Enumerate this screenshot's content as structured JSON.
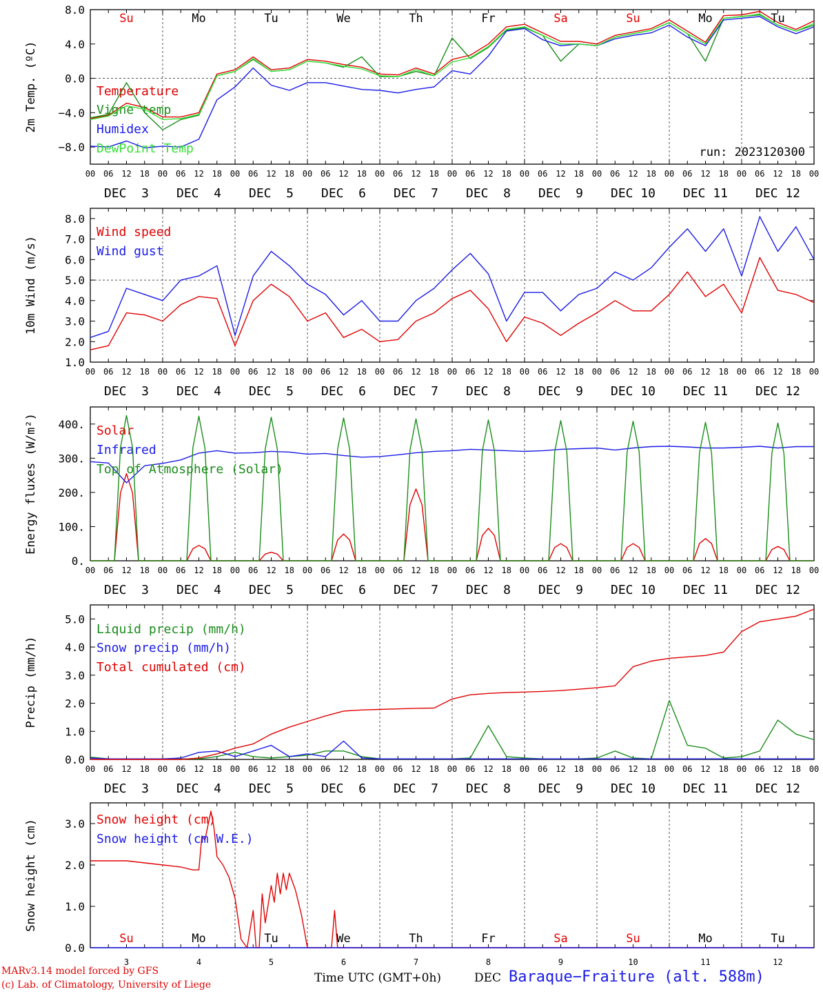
{
  "run_label": "run: 2023120300",
  "credits": {
    "line1": "MARv3.14 model forced by GFS",
    "line2": "(c) Lab. of Climatology, University of Liege"
  },
  "footer": {
    "time_label": "Time UTC (GMT+0h)",
    "month_label": "DEC",
    "station": "Baraque−Fraiture (alt. 588m)"
  },
  "x_axis": {
    "hour_ticks": [
      "00",
      "06",
      "12",
      "18"
    ],
    "date_labels": [
      "DEC  3",
      "DEC  4",
      "DEC  5",
      "DEC  6",
      "DEC  7",
      "DEC  8",
      "DEC  9",
      "DEC 10",
      "DEC 11",
      "DEC 12"
    ],
    "weekday_labels": [
      "Su",
      "Mo",
      "Tu",
      "We",
      "Th",
      "Fr",
      "Sa",
      "Su",
      "Mo",
      "Tu"
    ],
    "weekday_colors": [
      "#e00000",
      "#000000",
      "#000000",
      "#000000",
      "#000000",
      "#000000",
      "#e00000",
      "#e00000",
      "#000000",
      "#000000"
    ],
    "day_numbers": [
      "3",
      "4",
      "5",
      "6",
      "7",
      "8",
      "9",
      "10",
      "11",
      "12"
    ]
  },
  "colors": {
    "red": "#e00000",
    "green": "#1a8c1a",
    "blue": "#1a1ae6",
    "lightgreen": "#33e033",
    "grid": "#555555"
  },
  "chart_data": [
    {
      "type": "line",
      "ylabel": "2m Temp. (ºC)",
      "ylim": [
        -10,
        8
      ],
      "yticks": [
        "8.0",
        "4.0",
        "0.0",
        "−4.0",
        "−8.0"
      ],
      "ytick_values": [
        8,
        4,
        0,
        -4,
        -8
      ],
      "ref_line": 0,
      "x_hours": [
        0,
        6,
        12,
        18,
        24,
        30,
        36,
        42,
        48,
        54,
        60,
        66,
        72,
        78,
        84,
        90,
        96,
        102,
        108,
        114,
        120,
        126,
        132,
        138,
        144,
        150,
        156,
        162,
        168,
        174,
        180,
        186,
        192,
        198,
        204,
        210,
        216,
        222,
        228,
        234,
        240
      ],
      "series": [
        {
          "name": "Temperature",
          "color": "red",
          "values": [
            -4.7,
            -4.3,
            -2.9,
            -3.4,
            -4.5,
            -4.5,
            -4.0,
            0.5,
            1.0,
            2.5,
            1.0,
            1.2,
            2.2,
            2.0,
            1.6,
            1.3,
            0.5,
            0.4,
            1.2,
            0.5,
            2.2,
            2.7,
            4.0,
            6.0,
            6.3,
            5.3,
            4.3,
            4.3,
            4.0,
            5.0,
            5.4,
            5.8,
            6.8,
            5.5,
            4.2,
            7.3,
            7.4,
            7.8,
            6.5,
            5.7,
            6.7
          ]
        },
        {
          "name": "Vigne temp",
          "color": "green",
          "values": [
            -4.6,
            -4.2,
            -0.5,
            -4.0,
            -6.0,
            -4.8,
            -4.3,
            0.3,
            0.8,
            2.2,
            0.8,
            1.0,
            2.0,
            1.8,
            1.3,
            2.5,
            0.2,
            0.2,
            0.8,
            0.3,
            4.7,
            2.3,
            3.6,
            5.6,
            5.9,
            5.0,
            2.0,
            4.0,
            3.8,
            4.8,
            5.2,
            5.6,
            6.5,
            5.2,
            2.0,
            7.0,
            7.2,
            7.4,
            6.2,
            5.5,
            6.2
          ]
        },
        {
          "name": "Humidex",
          "color": "blue",
          "values": [
            -7.9,
            -8.0,
            -7.3,
            -8.1,
            -7.9,
            -8.0,
            -7.1,
            -2.5,
            -1.0,
            1.2,
            -0.8,
            -1.4,
            -0.5,
            -0.5,
            -0.9,
            -1.3,
            -1.4,
            -1.7,
            -1.3,
            -1.0,
            0.9,
            0.5,
            2.6,
            5.5,
            5.8,
            4.5,
            3.8,
            4.0,
            3.8,
            4.6,
            5.0,
            5.3,
            6.2,
            4.8,
            3.8,
            6.8,
            7.0,
            7.2,
            6.0,
            5.2,
            6.0
          ]
        },
        {
          "name": "DewPoint Temp",
          "color": "lightgreen",
          "values": [
            -4.8,
            -4.4,
            -3.2,
            -3.6,
            -4.8,
            -4.7,
            -4.2,
            0.3,
            0.8,
            2.3,
            0.8,
            1.0,
            2.0,
            1.8,
            1.4,
            1.1,
            0.3,
            0.2,
            1.0,
            0.3,
            1.9,
            2.4,
            3.7,
            5.7,
            6.0,
            5.0,
            4.0,
            4.0,
            3.8,
            4.8,
            5.2,
            5.6,
            6.5,
            5.2,
            4.0,
            7.0,
            7.2,
            7.5,
            6.2,
            5.5,
            6.4
          ]
        }
      ]
    },
    {
      "type": "line",
      "ylabel": "10m Wind (m/s)",
      "ylim": [
        1,
        8.5
      ],
      "yticks": [
        "8.0",
        "7.0",
        "6.0",
        "5.0",
        "4.0",
        "3.0",
        "2.0",
        "1.0"
      ],
      "ytick_values": [
        8,
        7,
        6,
        5,
        4,
        3,
        2,
        1
      ],
      "ref_line": 5,
      "x_hours": [
        0,
        6,
        12,
        18,
        24,
        30,
        36,
        42,
        48,
        54,
        60,
        66,
        72,
        78,
        84,
        90,
        96,
        102,
        108,
        114,
        120,
        126,
        132,
        138,
        144,
        150,
        156,
        162,
        168,
        174,
        180,
        186,
        192,
        198,
        204,
        210,
        216,
        222,
        228,
        234,
        240
      ],
      "series": [
        {
          "name": "Wind speed",
          "color": "red",
          "values": [
            1.6,
            1.8,
            3.4,
            3.3,
            3.0,
            3.8,
            4.2,
            4.1,
            1.8,
            4.0,
            4.8,
            4.2,
            3.0,
            3.4,
            2.2,
            2.6,
            2.0,
            2.1,
            3.0,
            3.4,
            4.1,
            4.5,
            3.6,
            2.0,
            3.2,
            2.9,
            2.3,
            2.9,
            3.4,
            4.0,
            3.5,
            3.5,
            4.3,
            5.4,
            4.2,
            4.8,
            3.4,
            6.1,
            4.5,
            4.3,
            3.9
          ]
        },
        {
          "name": "Wind gust",
          "color": "blue",
          "values": [
            2.2,
            2.5,
            4.6,
            4.3,
            4.0,
            5.0,
            5.2,
            5.7,
            2.3,
            5.2,
            6.4,
            5.7,
            4.8,
            4.3,
            3.3,
            4.0,
            3.0,
            3.0,
            4.0,
            4.6,
            5.5,
            6.3,
            5.3,
            3.0,
            4.4,
            4.4,
            3.5,
            4.3,
            4.6,
            5.4,
            5.0,
            5.6,
            6.6,
            7.5,
            6.4,
            7.5,
            5.2,
            8.1,
            6.4,
            7.6,
            6.0
          ]
        }
      ]
    },
    {
      "type": "line",
      "ylabel": "Energy fluxes (W/m²)",
      "ylim": [
        0,
        450
      ],
      "yticks": [
        "400.",
        "300.",
        "200.",
        "100.",
        "0."
      ],
      "ytick_values": [
        400,
        300,
        200,
        100,
        0
      ],
      "ref_line": null,
      "diurnal": {
        "sunrise_h": 8,
        "sunset_h": 16,
        "noon_h": 12
      },
      "series": [
        {
          "name": "Solar",
          "color": "red",
          "daily_peaks": [
            255,
            45,
            25,
            78,
            210,
            95,
            50,
            50,
            65,
            42
          ]
        },
        {
          "name": "Infrared",
          "color": "blue",
          "values": [
            290,
            286,
            228,
            278,
            285,
            295,
            315,
            322,
            315,
            316,
            320,
            318,
            312,
            314,
            308,
            303,
            305,
            310,
            316,
            320,
            322,
            326,
            324,
            322,
            320,
            322,
            326,
            328,
            330,
            324,
            330,
            334,
            335,
            333,
            330,
            330,
            332,
            335,
            330,
            334,
            334
          ]
        },
        {
          "name": "Top of Atmosphere (Solar)",
          "color": "green",
          "daily_peaks": [
            425,
            423,
            420,
            418,
            415,
            412,
            410,
            408,
            405,
            403
          ]
        }
      ]
    },
    {
      "type": "line",
      "ylabel": "Precip (mm/h)",
      "ylim": [
        0,
        5.5
      ],
      "yticks": [
        "5.0",
        "4.0",
        "3.0",
        "2.0",
        "1.0",
        "0.0"
      ],
      "ytick_values": [
        5,
        4,
        3,
        2,
        1,
        0
      ],
      "ref_line": null,
      "x_hours": [
        0,
        6,
        12,
        18,
        24,
        30,
        36,
        42,
        48,
        54,
        60,
        66,
        72,
        78,
        84,
        90,
        96,
        102,
        108,
        114,
        120,
        126,
        132,
        138,
        144,
        150,
        156,
        162,
        168,
        174,
        180,
        186,
        192,
        198,
        204,
        210,
        216,
        222,
        228,
        234,
        240
      ],
      "series": [
        {
          "name": "Liquid precip (mm/h)",
          "color": "green",
          "values": [
            0.08,
            0.02,
            0.02,
            0.02,
            0.02,
            0.02,
            0.02,
            0.1,
            0.25,
            0.1,
            0.05,
            0.1,
            0.15,
            0.3,
            0.3,
            0.1,
            0.02,
            0.02,
            0.02,
            0.02,
            0.02,
            0.05,
            1.2,
            0.1,
            0.05,
            0.02,
            0.02,
            0.02,
            0.05,
            0.3,
            0.05,
            0.02,
            2.1,
            0.5,
            0.4,
            0.05,
            0.1,
            0.3,
            1.4,
            0.9,
            0.7
          ]
        },
        {
          "name": "Snow precip (mm/h)",
          "color": "blue",
          "values": [
            0.05,
            0.02,
            0.02,
            0.02,
            0.02,
            0.05,
            0.25,
            0.3,
            0.1,
            0.3,
            0.5,
            0.1,
            0.2,
            0.1,
            0.65,
            0.05,
            0.02,
            0.02,
            0.02,
            0.02,
            0.02,
            0.02,
            0.02,
            0.02,
            0.02,
            0.02,
            0.02,
            0.02,
            0.02,
            0.02,
            0.02,
            0.02,
            0.02,
            0.02,
            0.02,
            0.02,
            0.02,
            0.02,
            0.02,
            0.02,
            0.02
          ]
        },
        {
          "name": "Total cumulated (cm)",
          "color": "red",
          "values": [
            0.0,
            0.0,
            0.0,
            0.0,
            0.0,
            0.0,
            0.05,
            0.2,
            0.4,
            0.55,
            0.9,
            1.15,
            1.35,
            1.55,
            1.72,
            1.76,
            1.78,
            1.8,
            1.82,
            1.83,
            2.15,
            2.3,
            2.35,
            2.38,
            2.4,
            2.42,
            2.45,
            2.5,
            2.55,
            2.62,
            3.3,
            3.5,
            3.6,
            3.65,
            3.7,
            3.82,
            4.55,
            4.9,
            5.0,
            5.1,
            5.35
          ]
        }
      ]
    },
    {
      "type": "line",
      "ylabel": "Snow height (cm)",
      "ylim": [
        0,
        3.5
      ],
      "yticks": [
        "3.0",
        "2.0",
        "1.0",
        "0.0"
      ],
      "ytick_values": [
        3,
        2,
        1,
        0
      ],
      "ref_line": null,
      "x_hours": [
        0,
        6,
        12,
        18,
        24,
        30,
        34,
        36,
        37,
        38,
        40,
        41,
        42,
        44,
        46,
        48,
        50,
        52,
        54,
        55,
        56,
        57,
        58,
        60,
        61,
        62,
        63,
        64,
        65,
        66,
        68,
        70,
        72,
        78,
        80,
        81,
        82,
        83,
        84,
        85,
        86,
        96,
        240
      ],
      "series": [
        {
          "name": "Snow height (cm)",
          "color": "red",
          "values": [
            2.1,
            2.1,
            2.1,
            2.05,
            2.0,
            1.95,
            1.88,
            1.88,
            2.7,
            2.6,
            3.3,
            2.9,
            2.2,
            2.0,
            1.7,
            1.2,
            0.2,
            0.0,
            0.9,
            0.0,
            0.0,
            1.3,
            0.6,
            1.5,
            1.1,
            1.8,
            1.3,
            1.8,
            1.4,
            1.8,
            1.4,
            0.8,
            0.0,
            0.0,
            0.0,
            0.9,
            0.0,
            0.0,
            0.0,
            0.0,
            0.0,
            0.0,
            0.0
          ]
        },
        {
          "name": "Snow height (cm W.E.)",
          "color": "blue",
          "values": [
            0,
            0,
            0,
            0,
            0,
            0,
            0,
            0,
            0,
            0,
            0,
            0,
            0,
            0,
            0,
            0,
            0,
            0,
            0,
            0,
            0,
            0,
            0,
            0,
            0,
            0,
            0,
            0,
            0,
            0,
            0,
            0,
            0,
            0,
            0,
            0,
            0,
            0,
            0,
            0,
            0,
            0,
            0
          ]
        }
      ]
    }
  ]
}
